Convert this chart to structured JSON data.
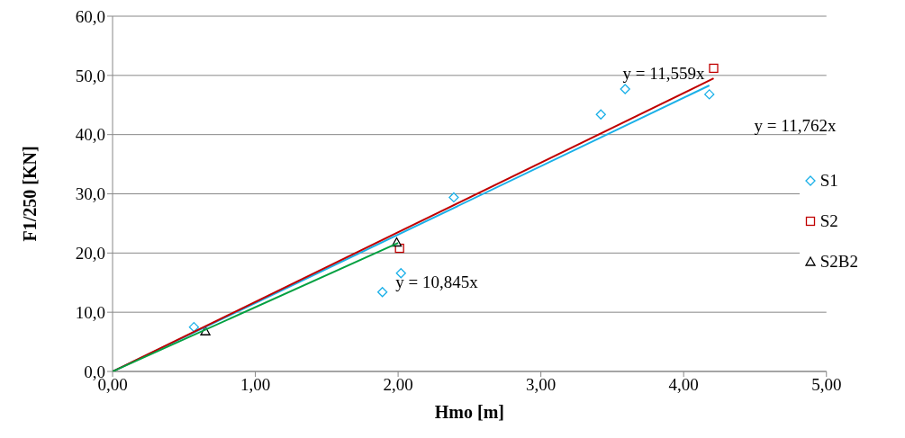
{
  "chart_data": {
    "type": "scatter",
    "xlabel": "Hmo [m]",
    "ylabel": "F1/250 [KN]",
    "xlim": [
      0,
      5
    ],
    "xticks": [
      {
        "value": 0,
        "label": "0,00"
      },
      {
        "value": 1,
        "label": "1,00"
      },
      {
        "value": 2,
        "label": "2,00"
      },
      {
        "value": 3,
        "label": "3,00"
      },
      {
        "value": 4,
        "label": "4,00"
      },
      {
        "value": 5,
        "label": "5,00"
      }
    ],
    "ylim": [
      0,
      60
    ],
    "yticks": [
      {
        "value": 0,
        "label": "0,0"
      },
      {
        "value": 10,
        "label": "10,0"
      },
      {
        "value": 20,
        "label": "20,0"
      },
      {
        "value": 30,
        "label": "30,0"
      },
      {
        "value": 40,
        "label": "40,0"
      },
      {
        "value": 50,
        "label": "50,0"
      },
      {
        "value": 60,
        "label": "60,0"
      }
    ],
    "grid": "y",
    "legend": "right",
    "series": [
      {
        "name": "S1",
        "marker": "diamond",
        "color": "#1ab0e8",
        "x": [
          0.57,
          1.89,
          2.02,
          2.39,
          3.42,
          3.59,
          4.18
        ],
        "values": [
          7.5,
          13.4,
          16.6,
          29.4,
          43.4,
          47.7,
          46.8
        ]
      },
      {
        "name": "S2",
        "marker": "square",
        "color": "#c00000",
        "x": [
          2.01,
          4.21
        ],
        "values": [
          20.8,
          51.2
        ]
      },
      {
        "name": "S2B2",
        "marker": "triangle",
        "color": "#000000",
        "x": [
          0.65,
          1.99
        ],
        "values": [
          6.8,
          21.8
        ]
      },
      {
        "type": "line",
        "marker": "none",
        "color": "#1ab0e8",
        "x": [
          0,
          4.18
        ],
        "values": [
          0,
          48.3
        ]
      },
      {
        "type": "line",
        "marker": "none",
        "color": "#c00000",
        "x": [
          0,
          4.21
        ],
        "values": [
          0,
          49.5
        ]
      },
      {
        "type": "line",
        "marker": "none",
        "color": "#00a040",
        "x": [
          0,
          2
        ],
        "values": [
          0,
          21.7
        ]
      }
    ],
    "annotations": [
      "y = 11,559x",
      "y = 11,762x",
      "y = 10,845x"
    ]
  }
}
